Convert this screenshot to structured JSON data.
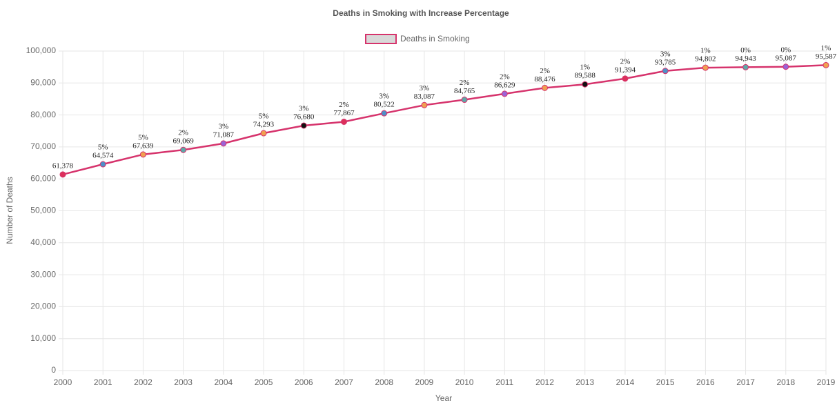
{
  "chart_data": {
    "type": "line",
    "title": "Deaths in Smoking with Increase Percentage",
    "x_label": "Year",
    "y_label": "Number of Deaths",
    "categories": [
      "2000",
      "2001",
      "2002",
      "2003",
      "2004",
      "2005",
      "2006",
      "2007",
      "2008",
      "2009",
      "2010",
      "2011",
      "2012",
      "2013",
      "2014",
      "2015",
      "2016",
      "2017",
      "2018",
      "2019"
    ],
    "series": [
      {
        "name": "Deaths in Smoking",
        "color": "#d6336c",
        "values": [
          61378,
          64574,
          67639,
          69069,
          71087,
          74293,
          76680,
          77867,
          80522,
          83087,
          84765,
          86629,
          88476,
          89588,
          91394,
          93785,
          94802,
          94943,
          95087,
          95587
        ],
        "value_labels": [
          "61,378",
          "64,574",
          "67,639",
          "69,069",
          "71,087",
          "74,293",
          "76,680",
          "77,867",
          "80,522",
          "83,087",
          "84,765",
          "86,629",
          "88,476",
          "89,588",
          "91,394",
          "93,785",
          "94,802",
          "94,943",
          "95,087",
          "95,587"
        ],
        "increase_labels": [
          null,
          "5%",
          "5%",
          "2%",
          "3%",
          "5%",
          "3%",
          "2%",
          "3%",
          "3%",
          "2%",
          "2%",
          "2%",
          "1%",
          "2%",
          "3%",
          "1%",
          "0%",
          "0%",
          "1%"
        ],
        "point_colors": [
          "#dc2f5a",
          "#4e8fc7",
          "#f0a050",
          "#5fa8a8",
          "#9b63d6",
          "#f0a050",
          "#111111",
          "#dc2f5a",
          "#4e8fc7",
          "#f0a050",
          "#5fa8a8",
          "#9b63d6",
          "#f0a050",
          "#111111",
          "#dc2f5a",
          "#4e8fc7",
          "#f0a050",
          "#5fa8a8",
          "#9b63d6",
          "#f0a050"
        ]
      }
    ],
    "ylim": [
      0,
      100000
    ],
    "yticks": [
      0,
      {
        "value": 10000,
        "label": "10,000"
      },
      {
        "value": 20000,
        "label": "20,000"
      },
      {
        "value": 30000,
        "label": "30,000"
      },
      {
        "value": 40000,
        "label": "40,000"
      },
      {
        "value": 50000,
        "label": "50,000"
      },
      {
        "value": 60000,
        "label": "60,000"
      },
      {
        "value": 70000,
        "label": "70,000"
      },
      {
        "value": 80000,
        "label": "80,000"
      },
      {
        "value": 90000,
        "label": "90,000"
      },
      {
        "value": 100000,
        "label": "100,000"
      }
    ],
    "grid": true,
    "legend": "top"
  }
}
